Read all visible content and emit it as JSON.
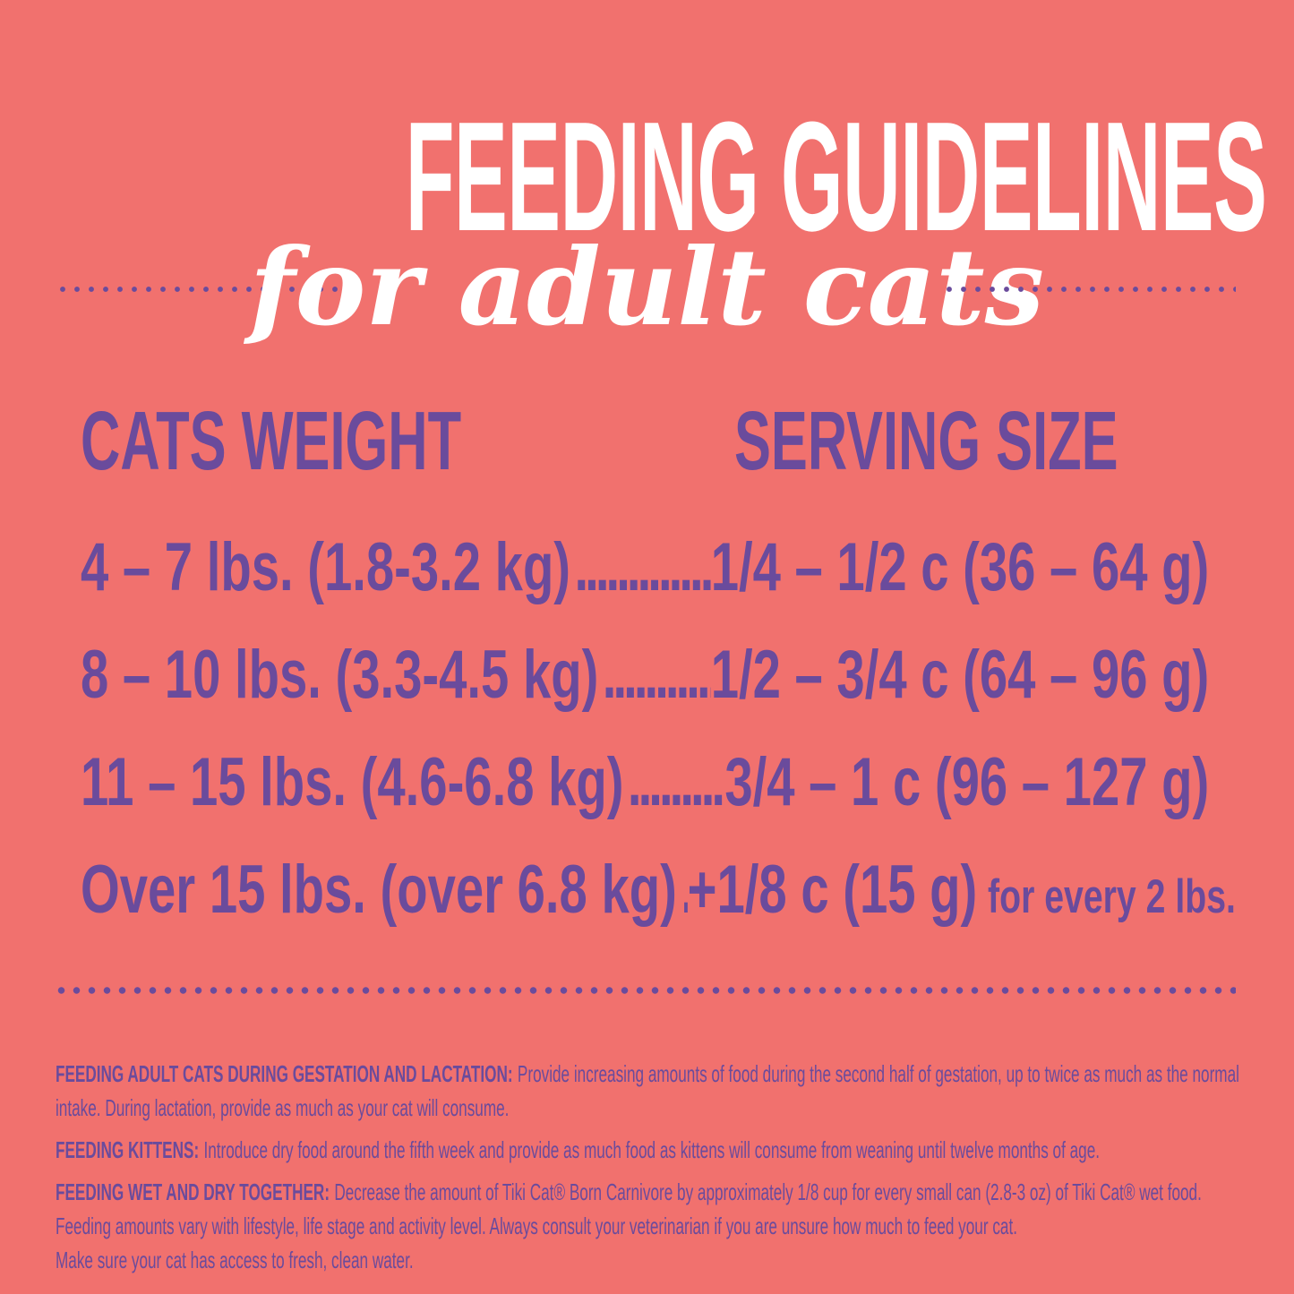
{
  "colors": {
    "background": "#F1716E",
    "text_purple": "#6A4B9C",
    "text_white": "#FFFFFF"
  },
  "header": {
    "title": "FEEDING GUIDELINES",
    "subtitle": "for adult cats"
  },
  "table": {
    "col_weight": "CATS WEIGHT",
    "col_serving": "SERVING SIZE",
    "rows": [
      {
        "weight": "4 – 7 lbs. (1.8-3.2 kg)",
        "dots": "................",
        "serving": "1/4 – 1/2 c (36 – 64 g)",
        "suffix": ""
      },
      {
        "weight": "8 – 10 lbs. (3.3-4.5 kg)",
        "dots": "..............",
        "serving": "1/2 – 3/4 c (64 – 96 g)",
        "suffix": ""
      },
      {
        "weight": "11 – 15 lbs. (4.6-6.8 kg)",
        "dots": "...........",
        "serving": "3/4 – 1 c (96 – 127 g)",
        "suffix": ""
      },
      {
        "weight": "Over 15 lbs. (over 6.8 kg)",
        "dots": "..........",
        "serving": "+1/8 c (15 g)",
        "suffix": "for every 2 lbs."
      }
    ]
  },
  "notes": [
    {
      "label": "FEEDING ADULT CATS DURING GESTATION AND LACTATION:",
      "body": "Provide increasing amounts of food during the second half of gestation, up to twice as much as the normal intake.  During lactation, provide as much as your cat will consume."
    },
    {
      "label": "FEEDING KITTENS:",
      "body": "Introduce dry food around the fifth week and provide as much food as kittens will consume from weaning until twelve months of age."
    },
    {
      "label": "FEEDING WET AND DRY TOGETHER:",
      "body": "Decrease the amount of Tiki Cat® Born Carnivore by approximately 1/8 cup for every small can (2.8-3 oz) of Tiki Cat® wet food. Feeding amounts vary with lifestyle, life stage and activity level.  Always consult your veterinarian if you are unsure how much to feed your cat.",
      "body2": "Make sure your cat has access to fresh, clean water."
    }
  ]
}
